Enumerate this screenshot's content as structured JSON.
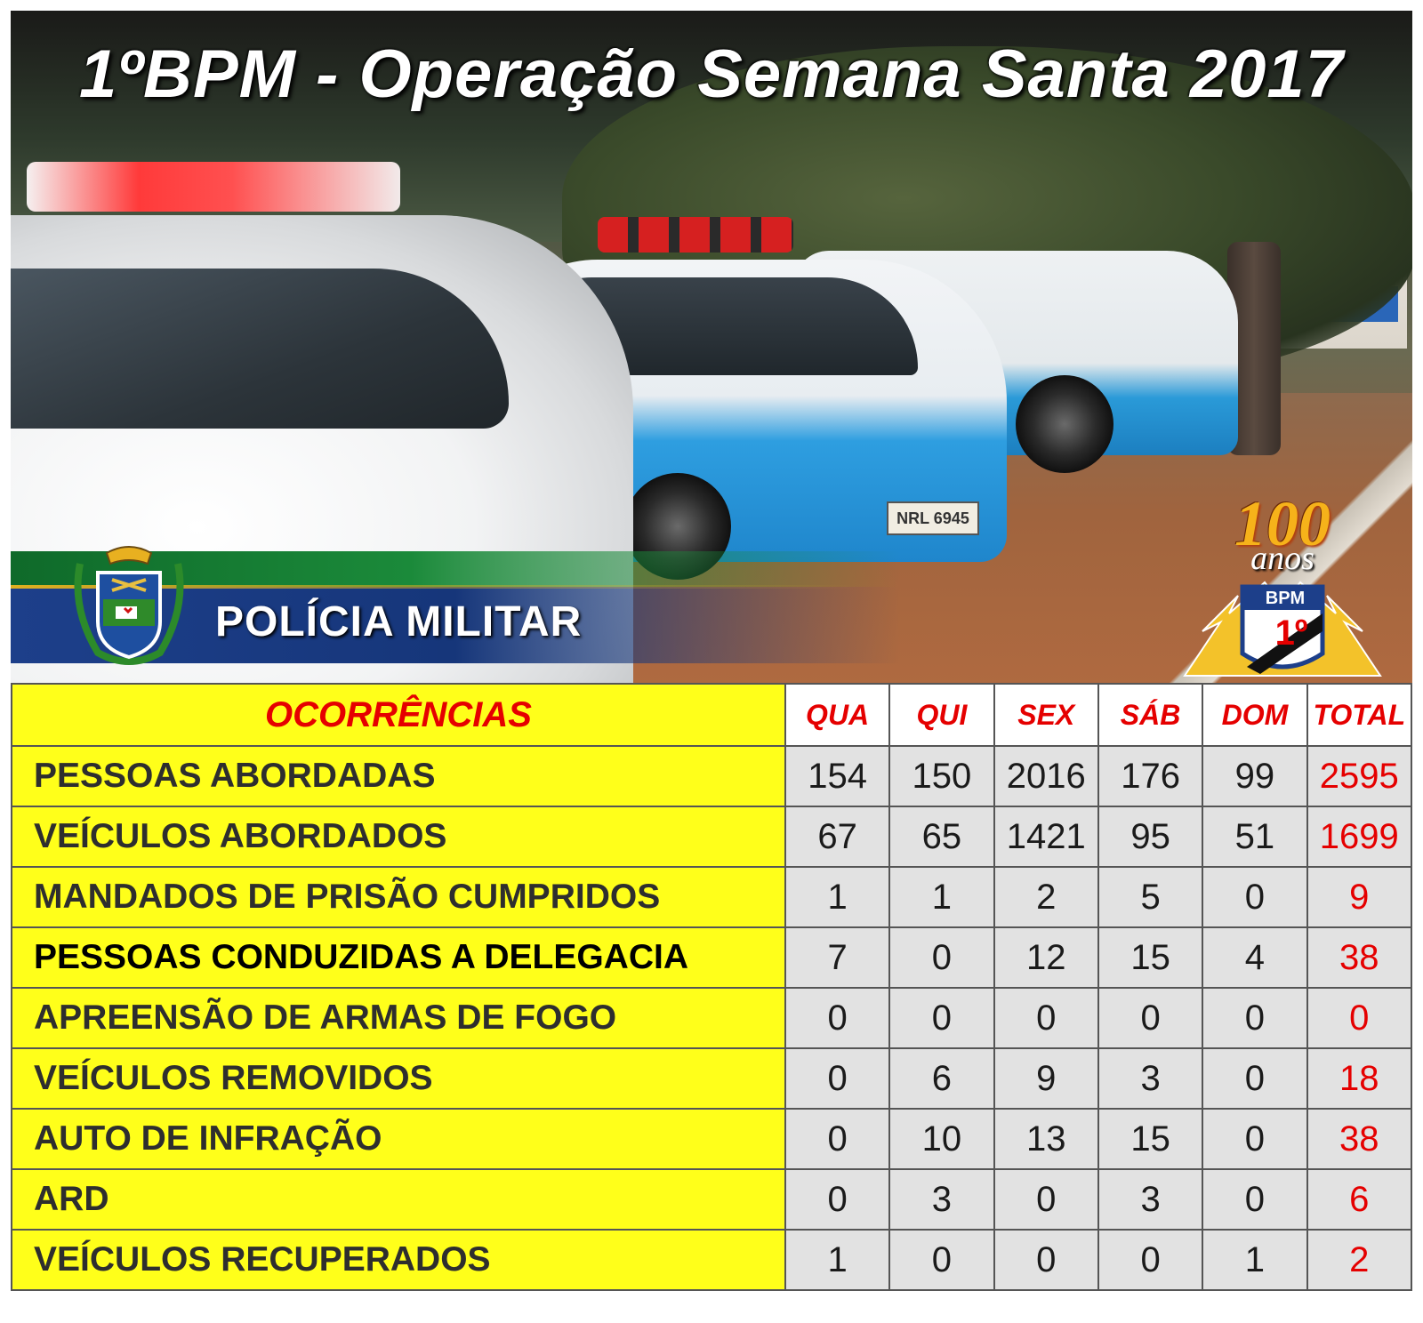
{
  "title": "1ºBPM - Operação Semana Santa 2017",
  "photo": {
    "plate_text": "NRL 6945"
  },
  "ribbon": {
    "text": "POLÍCIA MILITAR"
  },
  "anniversary": {
    "number": "100",
    "word": "anos",
    "unit": "BPM",
    "ordinal": "1º"
  },
  "table": {
    "header_label": "OCORRÊNCIAS",
    "columns": [
      "QUA",
      "QUI",
      "SEX",
      "SÁB",
      "DOM",
      "TOTAL"
    ],
    "rows": [
      {
        "label": "PESSOAS ABORDADAS",
        "values": [
          "154",
          "150",
          "2016",
          "176",
          "99"
        ],
        "total": "2595"
      },
      {
        "label": "VEÍCULOS ABORDADOS",
        "values": [
          "67",
          "65",
          "1421",
          "95",
          "51"
        ],
        "total": "1699"
      },
      {
        "label": "MANDADOS DE PRISÃO CUMPRIDOS",
        "values": [
          "1",
          "1",
          "2",
          "5",
          "0"
        ],
        "total": "9"
      },
      {
        "label": "PESSOAS CONDUZIDAS A DELEGACIA",
        "values": [
          "7",
          "0",
          "12",
          "15",
          "4"
        ],
        "total": "38"
      },
      {
        "label": "APREENSÃO DE ARMAS DE FOGO",
        "values": [
          "0",
          "0",
          "0",
          "0",
          "0"
        ],
        "total": "0"
      },
      {
        "label": "VEÍCULOS REMOVIDOS",
        "values": [
          "0",
          "6",
          "9",
          "3",
          "0"
        ],
        "total": "18"
      },
      {
        "label": "AUTO DE INFRAÇÃO",
        "values": [
          "0",
          "10",
          "13",
          "15",
          "0"
        ],
        "total": "38"
      },
      {
        "label": "ARD",
        "values": [
          "0",
          "3",
          "0",
          "3",
          "0"
        ],
        "total": "6"
      },
      {
        "label": "VEÍCULOS RECUPERADOS",
        "values": [
          "1",
          "0",
          "0",
          "0",
          "1"
        ],
        "total": "2"
      }
    ]
  },
  "colors": {
    "label_bg": "#ffff1a",
    "value_bg": "#e2e2e2",
    "accent_red": "#e50000",
    "ribbon_blue": "#1d3f8a",
    "ribbon_green": "#1b8a3a"
  }
}
